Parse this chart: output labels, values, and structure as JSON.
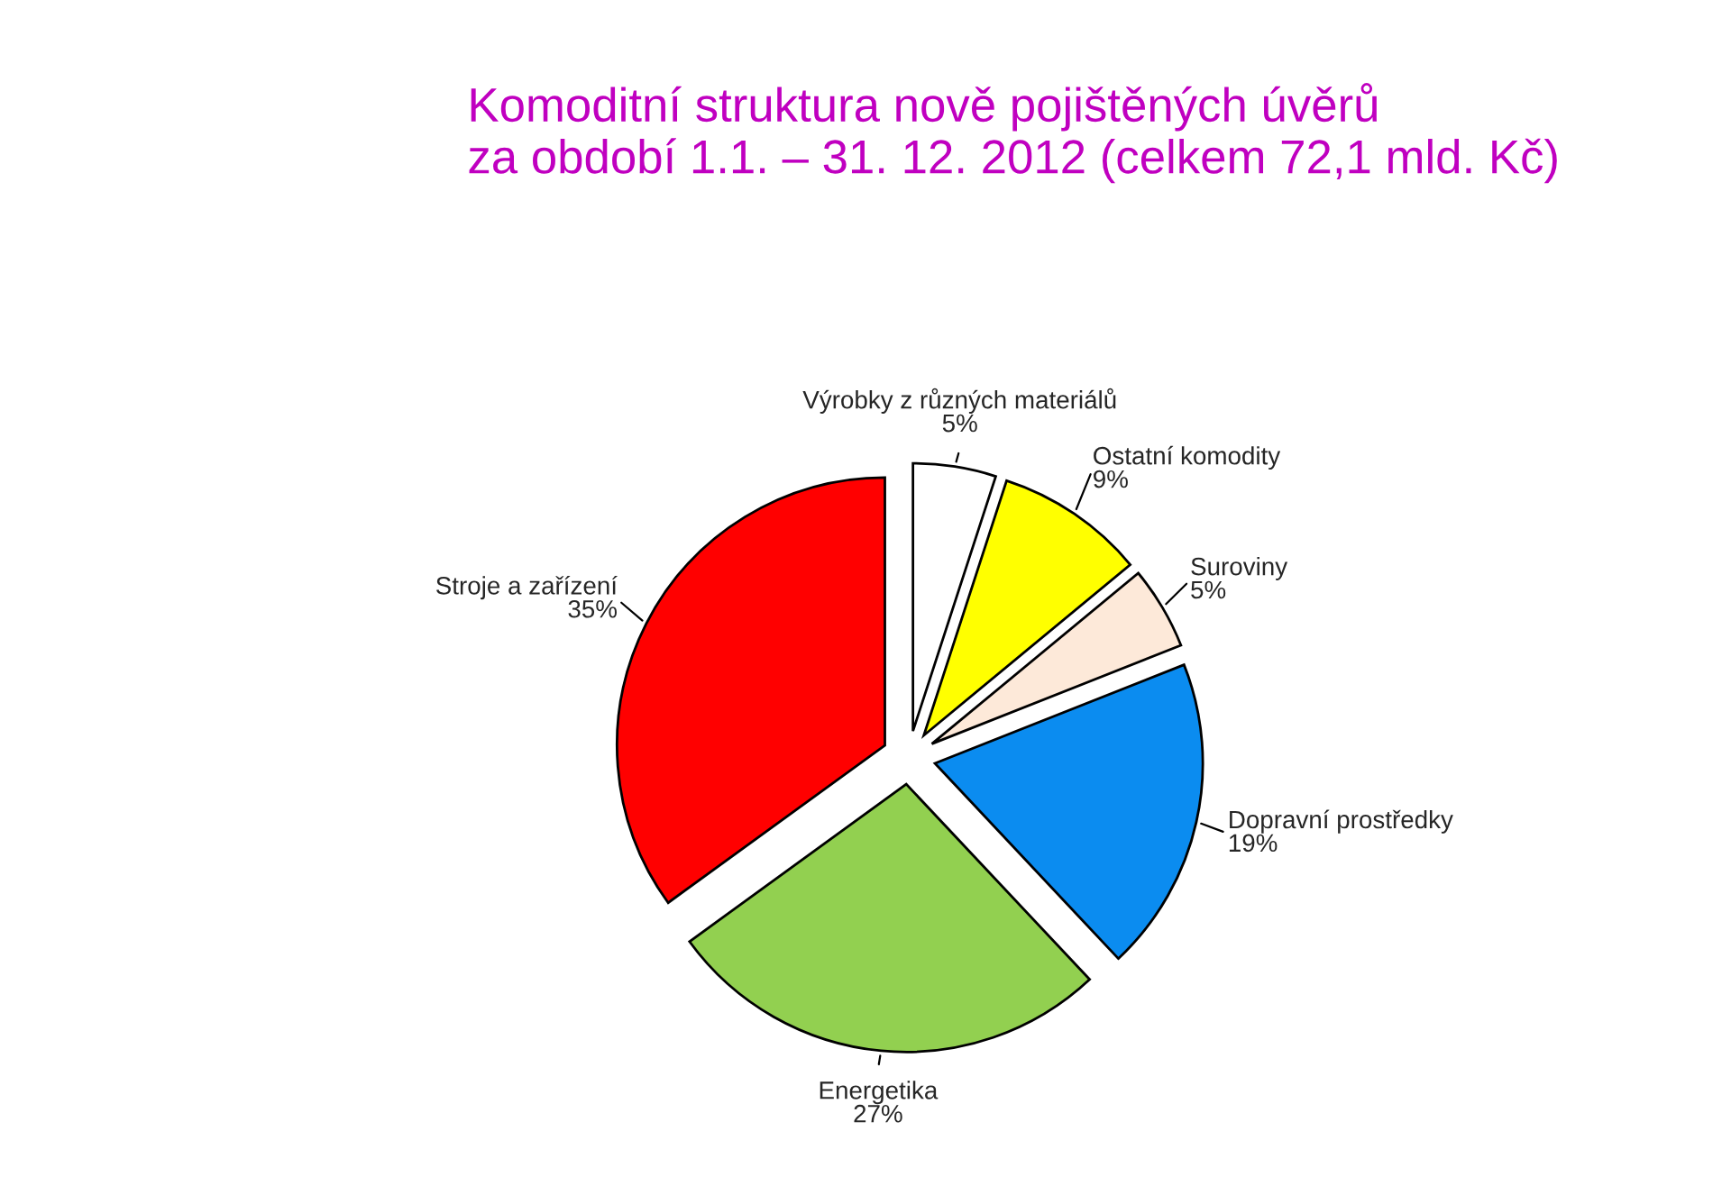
{
  "chart_data": {
    "type": "pie",
    "title": "Komoditní struktura nově pojištěných úvěrů\nza období 1.1. – 31. 12. 2012 (celkem 72,1 mld. Kč)",
    "categories": [
      "Výrobky z různých materiálů",
      "Ostatní komodity",
      "Suroviny",
      "Dopravní prostředky",
      "Energetika",
      "Stroje a zařízení"
    ],
    "values": [
      5,
      9,
      5,
      19,
      27,
      35
    ],
    "colors": [
      "#ffffff",
      "#ffff00",
      "#fde9d9",
      "#0b8cf0",
      "#92d050",
      "#ff0000"
    ],
    "value_labels": [
      "5%",
      "9%",
      "5%",
      "19%",
      "27%",
      "35%"
    ]
  }
}
